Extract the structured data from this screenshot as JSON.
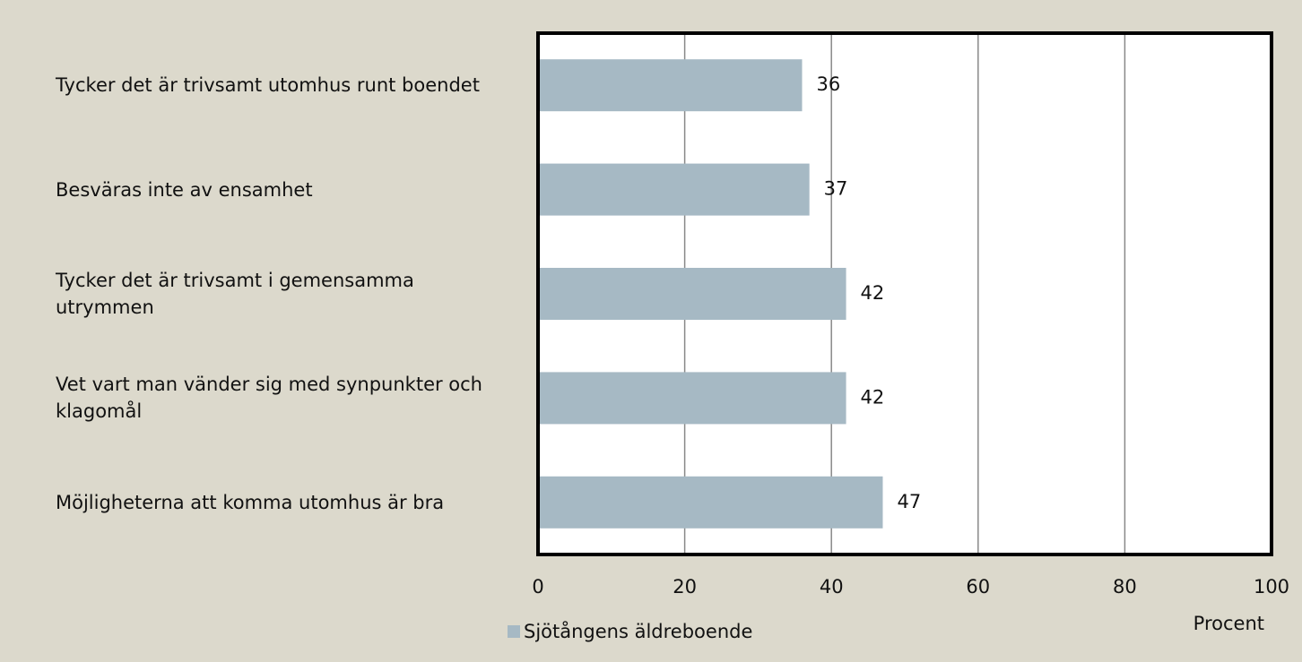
{
  "chart_data": {
    "type": "bar",
    "orientation": "horizontal",
    "categories": [
      "Tycker det är trivsamt utomhus runt boendet",
      "Besväras inte av ensamhet",
      "Tycker det är trivsamt i gemensamma utrymmen",
      "Vet vart man vänder sig med synpunkter och klagomål",
      "Möjligheterna att komma utomhus är bra"
    ],
    "series": [
      {
        "name": "Sjötångens äldreboende",
        "color": "#a6b9c4",
        "values": [
          36,
          37,
          42,
          42,
          47
        ]
      }
    ],
    "xlim": [
      0,
      100
    ],
    "xticks": [
      0,
      20,
      40,
      60,
      80,
      100
    ],
    "xlabel": "Procent",
    "grid": true,
    "legend": "bottom-left"
  }
}
